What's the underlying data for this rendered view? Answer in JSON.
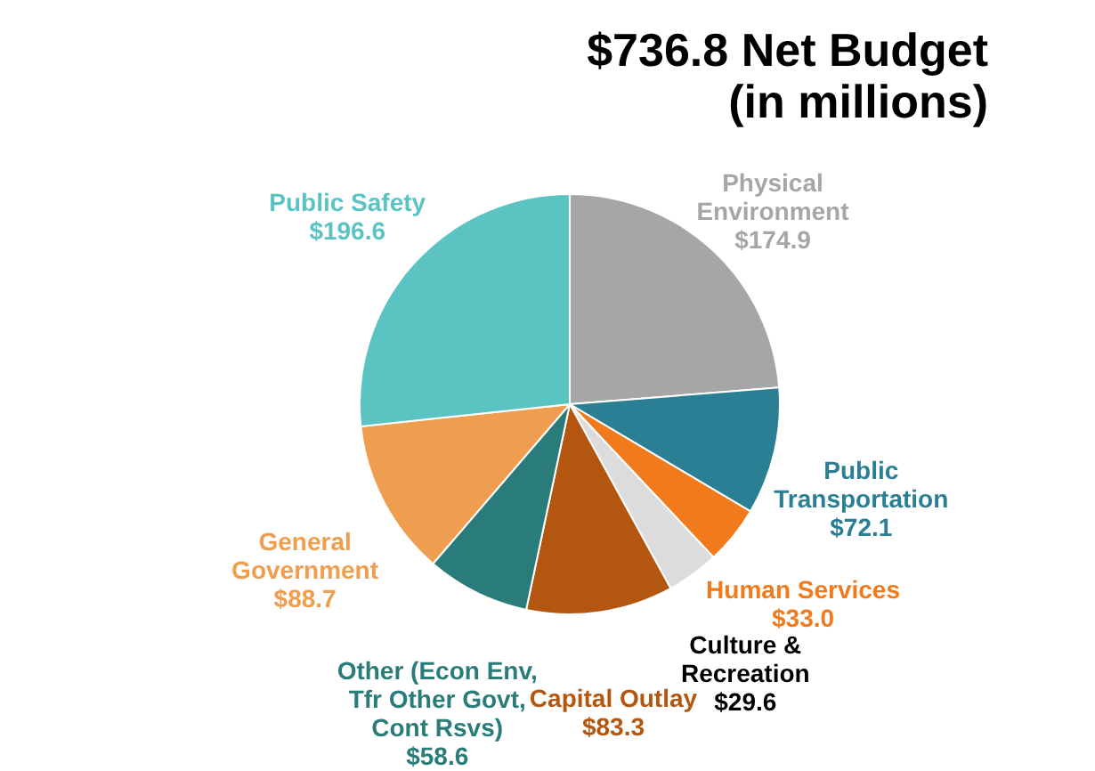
{
  "chart_data": {
    "type": "pie",
    "title": "$736.8 Net Budget",
    "subtitle": "(in millions)",
    "categories": [
      "Physical Environment",
      "Public Transportation",
      "Human Services",
      "Culture & Recreation",
      "Capital Outlay",
      "Other (Econ Env, Tfr Other Govt, Cont Rsvs)",
      "General Government",
      "Public Safety"
    ],
    "values": [
      174.9,
      72.1,
      33.0,
      29.6,
      83.3,
      58.6,
      88.7,
      196.6
    ],
    "colors": [
      "#a6a6a6",
      "#2b7f95",
      "#f07a1c",
      "#dcdcdc",
      "#b3560f",
      "#2a7c7a",
      "#ef9d4e",
      "#5cc3c3"
    ],
    "value_labels": [
      "$174.9",
      "$72.1",
      "$33.0",
      "$29.6",
      "$83.3",
      "$58.6",
      "$88.7",
      "$196.6"
    ],
    "legend": false
  }
}
